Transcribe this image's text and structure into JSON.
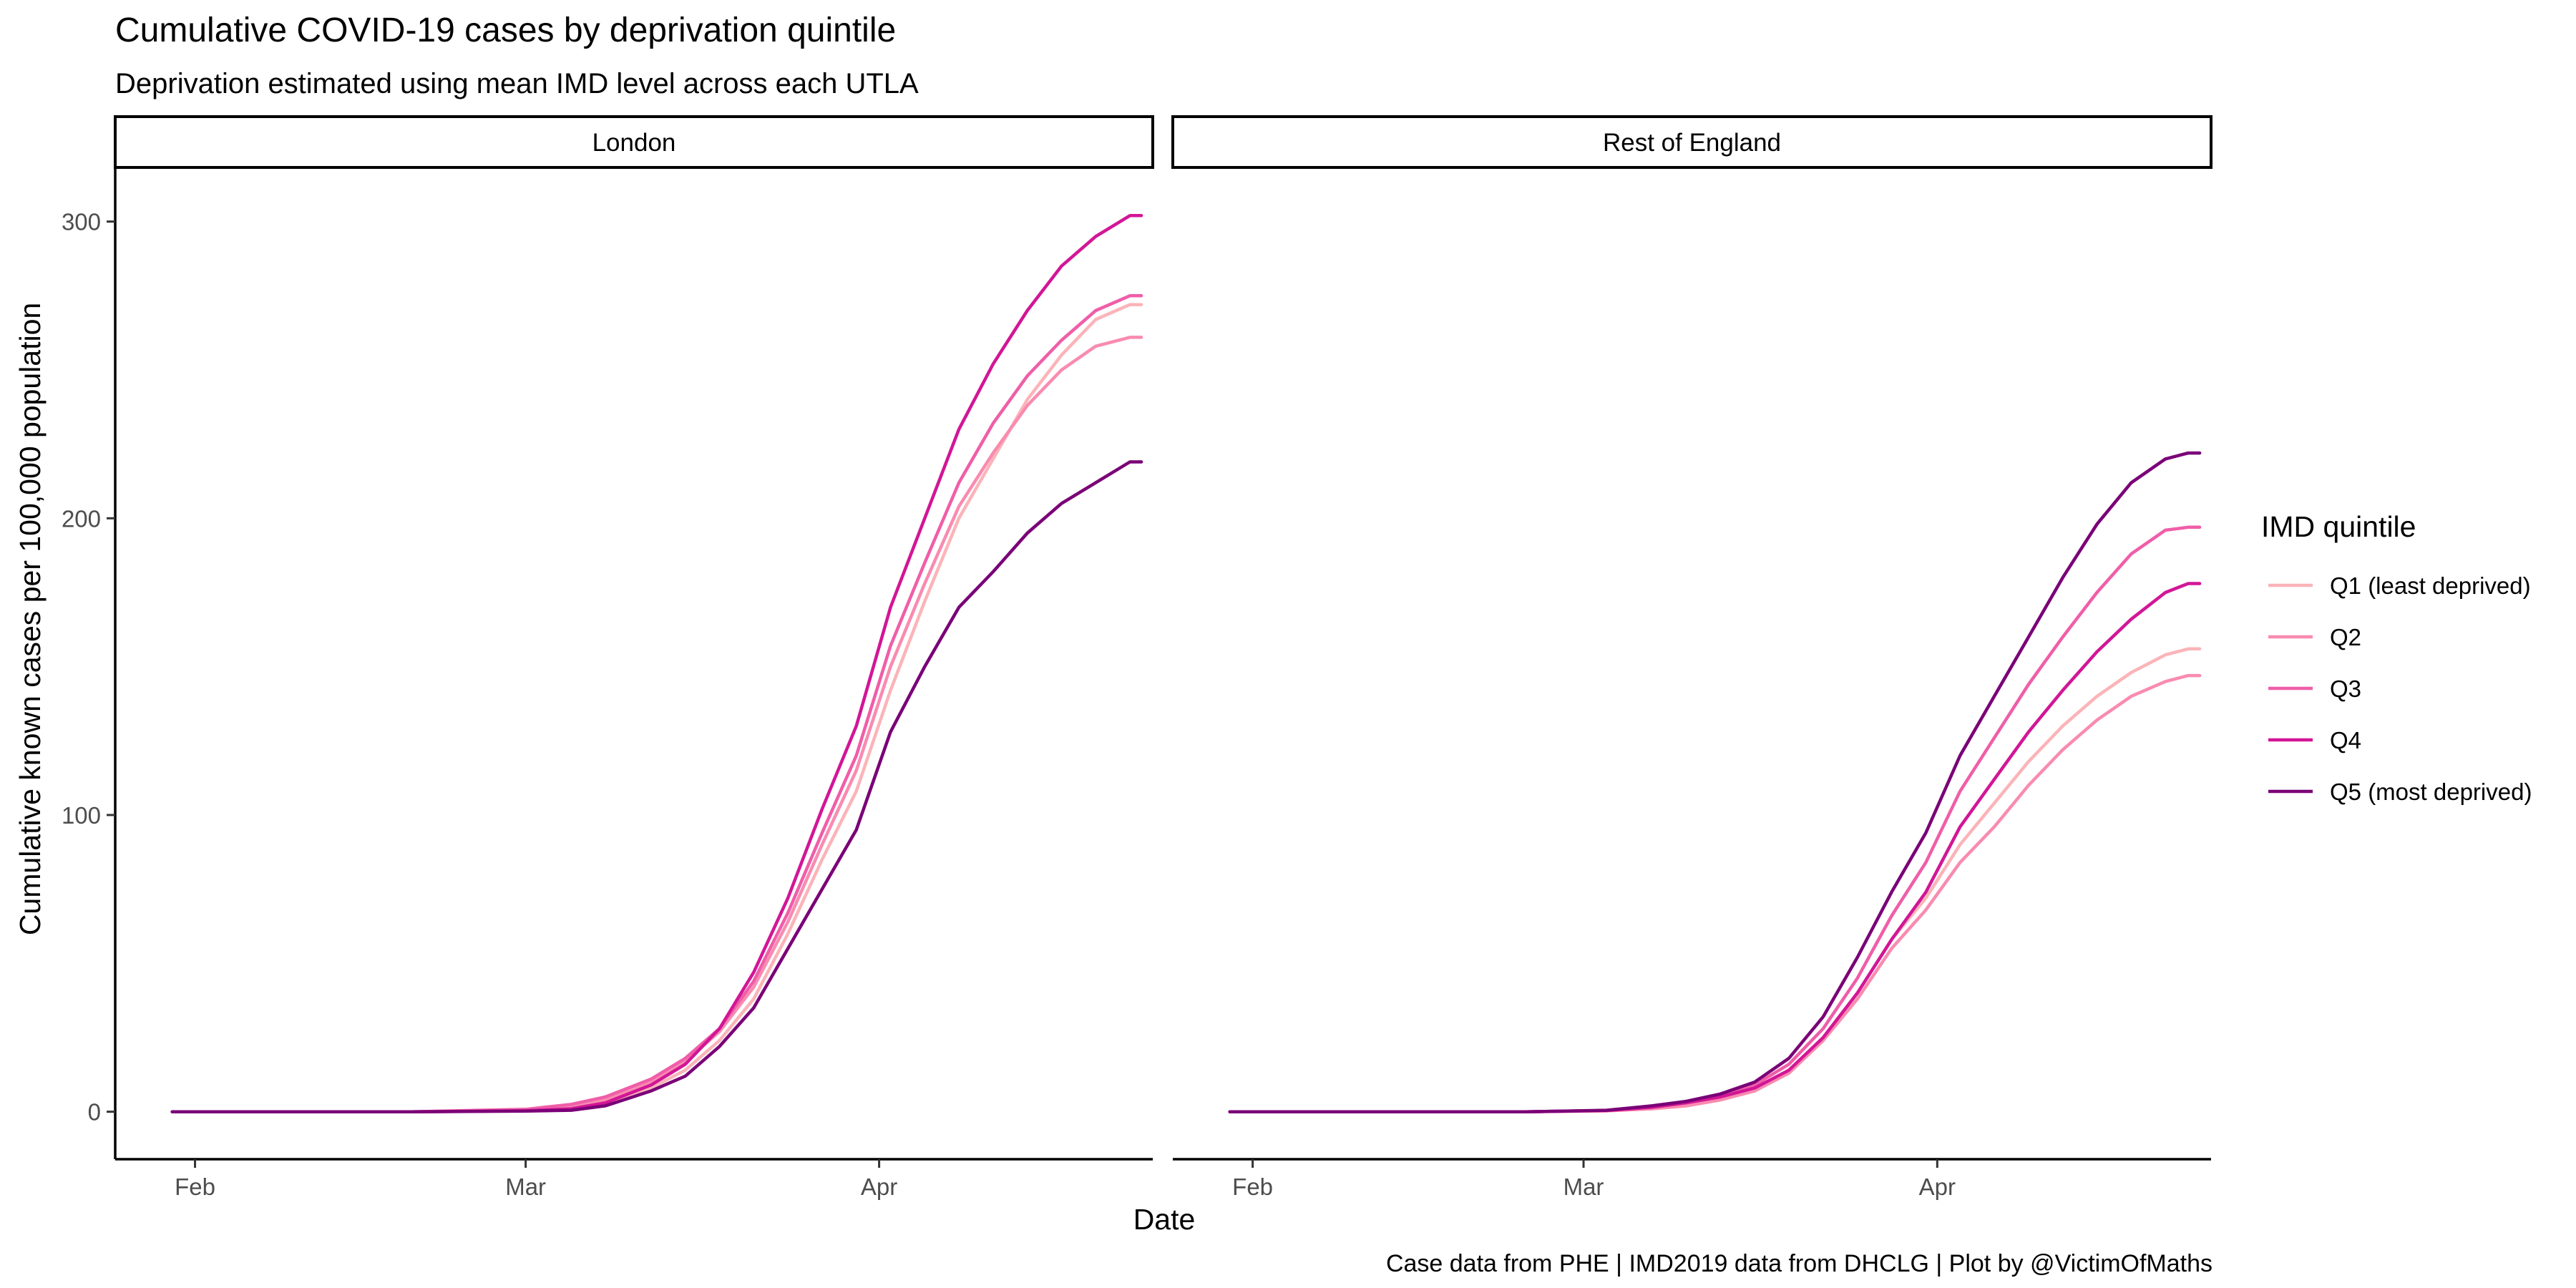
{
  "chart_data": {
    "type": "line",
    "title": "Cumulative COVID-19 cases by deprivation quintile",
    "subtitle": "Deprivation estimated using mean IMD level across each UTLA",
    "xlabel": "Date",
    "ylabel": "Cumulative known cases per 100,000 population",
    "caption": "Case data from PHE | IMD2019 data from DHCLG | Plot by @VictimOfMaths",
    "x_range": [
      "2020-01-25",
      "2020-04-25"
    ],
    "ylim": [
      -16,
      318
    ],
    "x_ticks": [
      {
        "date": "2020-02-01",
        "label": "Feb"
      },
      {
        "date": "2020-03-01",
        "label": "Mar"
      },
      {
        "date": "2020-04-01",
        "label": "Apr"
      }
    ],
    "y_ticks": [
      {
        "value": 0,
        "label": "0"
      },
      {
        "value": 100,
        "label": "100"
      },
      {
        "value": 200,
        "label": "200"
      },
      {
        "value": 300,
        "label": "300"
      }
    ],
    "grid": false,
    "legend": {
      "title": "IMD quintile",
      "position": "right",
      "items": [
        {
          "label": "Q1 (least deprived)",
          "color": "#fbb4b9"
        },
        {
          "label": "Q2",
          "color": "#f98bb0"
        },
        {
          "label": "Q3",
          "color": "#ef5ea8"
        },
        {
          "label": "Q4",
          "color": "#d21696"
        },
        {
          "label": "Q5 (most deprived)",
          "color": "#7a0177"
        }
      ]
    },
    "panels": [
      {
        "title": "London",
        "series": [
          {
            "color": "#fbb4b9",
            "points": [
              [
                "2020-01-30",
                0
              ],
              [
                "2020-02-20",
                0
              ],
              [
                "2020-03-01",
                0.4
              ],
              [
                "2020-03-05",
                1
              ],
              [
                "2020-03-08",
                3
              ],
              [
                "2020-03-12",
                8
              ],
              [
                "2020-03-15",
                14
              ],
              [
                "2020-03-18",
                24
              ],
              [
                "2020-03-21",
                38
              ],
              [
                "2020-03-24",
                60
              ],
              [
                "2020-03-27",
                85
              ],
              [
                "2020-03-30",
                108
              ],
              [
                "2020-04-02",
                142
              ],
              [
                "2020-04-05",
                172
              ],
              [
                "2020-04-08",
                200
              ],
              [
                "2020-04-11",
                220
              ],
              [
                "2020-04-14",
                240
              ],
              [
                "2020-04-17",
                255
              ],
              [
                "2020-04-20",
                267
              ],
              [
                "2020-04-23",
                272
              ],
              [
                "2020-04-24",
                272
              ]
            ]
          },
          {
            "color": "#f98bb0",
            "points": [
              [
                "2020-01-30",
                0
              ],
              [
                "2020-02-20",
                0
              ],
              [
                "2020-03-01",
                0.6
              ],
              [
                "2020-03-05",
                2
              ],
              [
                "2020-03-08",
                4
              ],
              [
                "2020-03-12",
                10
              ],
              [
                "2020-03-15",
                17
              ],
              [
                "2020-03-18",
                27
              ],
              [
                "2020-03-21",
                42
              ],
              [
                "2020-03-24",
                64
              ],
              [
                "2020-03-27",
                90
              ],
              [
                "2020-03-30",
                115
              ],
              [
                "2020-04-02",
                150
              ],
              [
                "2020-04-05",
                178
              ],
              [
                "2020-04-08",
                204
              ],
              [
                "2020-04-11",
                222
              ],
              [
                "2020-04-14",
                238
              ],
              [
                "2020-04-17",
                250
              ],
              [
                "2020-04-20",
                258
              ],
              [
                "2020-04-23",
                261
              ],
              [
                "2020-04-24",
                261
              ]
            ]
          },
          {
            "color": "#ef5ea8",
            "points": [
              [
                "2020-01-30",
                0
              ],
              [
                "2020-02-20",
                0
              ],
              [
                "2020-03-01",
                0.8
              ],
              [
                "2020-03-05",
                2.5
              ],
              [
                "2020-03-08",
                5
              ],
              [
                "2020-03-12",
                11
              ],
              [
                "2020-03-15",
                18
              ],
              [
                "2020-03-18",
                28
              ],
              [
                "2020-03-21",
                44
              ],
              [
                "2020-03-24",
                67
              ],
              [
                "2020-03-27",
                94
              ],
              [
                "2020-03-30",
                120
              ],
              [
                "2020-04-02",
                157
              ],
              [
                "2020-04-05",
                185
              ],
              [
                "2020-04-08",
                212
              ],
              [
                "2020-04-11",
                232
              ],
              [
                "2020-04-14",
                248
              ],
              [
                "2020-04-17",
                260
              ],
              [
                "2020-04-20",
                270
              ],
              [
                "2020-04-23",
                275
              ],
              [
                "2020-04-24",
                275
              ]
            ]
          },
          {
            "color": "#d21696",
            "points": [
              [
                "2020-01-30",
                0
              ],
              [
                "2020-02-20",
                0
              ],
              [
                "2020-03-01",
                0.3
              ],
              [
                "2020-03-05",
                1
              ],
              [
                "2020-03-08",
                3
              ],
              [
                "2020-03-12",
                9
              ],
              [
                "2020-03-15",
                16
              ],
              [
                "2020-03-18",
                28
              ],
              [
                "2020-03-21",
                47
              ],
              [
                "2020-03-24",
                72
              ],
              [
                "2020-03-27",
                102
              ],
              [
                "2020-03-30",
                130
              ],
              [
                "2020-04-02",
                170
              ],
              [
                "2020-04-05",
                200
              ],
              [
                "2020-04-08",
                230
              ],
              [
                "2020-04-11",
                252
              ],
              [
                "2020-04-14",
                270
              ],
              [
                "2020-04-17",
                285
              ],
              [
                "2020-04-20",
                295
              ],
              [
                "2020-04-23",
                302
              ],
              [
                "2020-04-24",
                302
              ]
            ]
          },
          {
            "color": "#7a0177",
            "points": [
              [
                "2020-01-30",
                0
              ],
              [
                "2020-02-20",
                0
              ],
              [
                "2020-03-01",
                0.2
              ],
              [
                "2020-03-05",
                0.5
              ],
              [
                "2020-03-08",
                2
              ],
              [
                "2020-03-12",
                7
              ],
              [
                "2020-03-15",
                12
              ],
              [
                "2020-03-18",
                22
              ],
              [
                "2020-03-21",
                35
              ],
              [
                "2020-03-24",
                55
              ],
              [
                "2020-03-27",
                75
              ],
              [
                "2020-03-30",
                95
              ],
              [
                "2020-04-02",
                128
              ],
              [
                "2020-04-05",
                150
              ],
              [
                "2020-04-08",
                170
              ],
              [
                "2020-04-11",
                182
              ],
              [
                "2020-04-14",
                195
              ],
              [
                "2020-04-17",
                205
              ],
              [
                "2020-04-20",
                212
              ],
              [
                "2020-04-23",
                219
              ],
              [
                "2020-04-24",
                219
              ]
            ]
          }
        ]
      },
      {
        "title": "Rest of England",
        "series": [
          {
            "color": "#fbb4b9",
            "points": [
              [
                "2020-01-30",
                0
              ],
              [
                "2020-02-25",
                0
              ],
              [
                "2020-03-03",
                0.3
              ],
              [
                "2020-03-07",
                1
              ],
              [
                "2020-03-10",
                2
              ],
              [
                "2020-03-13",
                4
              ],
              [
                "2020-03-16",
                7
              ],
              [
                "2020-03-19",
                14
              ],
              [
                "2020-03-22",
                25
              ],
              [
                "2020-03-25",
                40
              ],
              [
                "2020-03-28",
                58
              ],
              [
                "2020-03-31",
                72
              ],
              [
                "2020-04-03",
                90
              ],
              [
                "2020-04-06",
                104
              ],
              [
                "2020-04-09",
                118
              ],
              [
                "2020-04-12",
                130
              ],
              [
                "2020-04-15",
                140
              ],
              [
                "2020-04-18",
                148
              ],
              [
                "2020-04-21",
                154
              ],
              [
                "2020-04-23",
                156
              ],
              [
                "2020-04-24",
                156
              ]
            ]
          },
          {
            "color": "#f98bb0",
            "points": [
              [
                "2020-01-30",
                0
              ],
              [
                "2020-02-25",
                0
              ],
              [
                "2020-03-03",
                0.3
              ],
              [
                "2020-03-07",
                1
              ],
              [
                "2020-03-10",
                2
              ],
              [
                "2020-03-13",
                4
              ],
              [
                "2020-03-16",
                7
              ],
              [
                "2020-03-19",
                13
              ],
              [
                "2020-03-22",
                24
              ],
              [
                "2020-03-25",
                38
              ],
              [
                "2020-03-28",
                55
              ],
              [
                "2020-03-31",
                68
              ],
              [
                "2020-04-03",
                84
              ],
              [
                "2020-04-06",
                96
              ],
              [
                "2020-04-09",
                110
              ],
              [
                "2020-04-12",
                122
              ],
              [
                "2020-04-15",
                132
              ],
              [
                "2020-04-18",
                140
              ],
              [
                "2020-04-21",
                145
              ],
              [
                "2020-04-23",
                147
              ],
              [
                "2020-04-24",
                147
              ]
            ]
          },
          {
            "color": "#ef5ea8",
            "points": [
              [
                "2020-01-30",
                0
              ],
              [
                "2020-02-25",
                0
              ],
              [
                "2020-03-03",
                0.4
              ],
              [
                "2020-03-07",
                1.5
              ],
              [
                "2020-03-10",
                3
              ],
              [
                "2020-03-13",
                5
              ],
              [
                "2020-03-16",
                9
              ],
              [
                "2020-03-19",
                16
              ],
              [
                "2020-03-22",
                28
              ],
              [
                "2020-03-25",
                45
              ],
              [
                "2020-03-28",
                66
              ],
              [
                "2020-03-31",
                84
              ],
              [
                "2020-04-03",
                108
              ],
              [
                "2020-04-06",
                126
              ],
              [
                "2020-04-09",
                144
              ],
              [
                "2020-04-12",
                160
              ],
              [
                "2020-04-15",
                175
              ],
              [
                "2020-04-18",
                188
              ],
              [
                "2020-04-21",
                196
              ],
              [
                "2020-04-23",
                197
              ],
              [
                "2020-04-24",
                197
              ]
            ]
          },
          {
            "color": "#d21696",
            "points": [
              [
                "2020-01-30",
                0
              ],
              [
                "2020-02-25",
                0
              ],
              [
                "2020-03-03",
                0.4
              ],
              [
                "2020-03-07",
                1.5
              ],
              [
                "2020-03-10",
                3
              ],
              [
                "2020-03-13",
                5
              ],
              [
                "2020-03-16",
                8
              ],
              [
                "2020-03-19",
                14
              ],
              [
                "2020-03-22",
                25
              ],
              [
                "2020-03-25",
                40
              ],
              [
                "2020-03-28",
                58
              ],
              [
                "2020-03-31",
                74
              ],
              [
                "2020-04-03",
                96
              ],
              [
                "2020-04-06",
                112
              ],
              [
                "2020-04-09",
                128
              ],
              [
                "2020-04-12",
                142
              ],
              [
                "2020-04-15",
                155
              ],
              [
                "2020-04-18",
                166
              ],
              [
                "2020-04-21",
                175
              ],
              [
                "2020-04-23",
                178
              ],
              [
                "2020-04-24",
                178
              ]
            ]
          },
          {
            "color": "#7a0177",
            "points": [
              [
                "2020-01-30",
                0
              ],
              [
                "2020-02-25",
                0
              ],
              [
                "2020-03-03",
                0.5
              ],
              [
                "2020-03-07",
                2
              ],
              [
                "2020-03-10",
                3.5
              ],
              [
                "2020-03-13",
                6
              ],
              [
                "2020-03-16",
                10
              ],
              [
                "2020-03-19",
                18
              ],
              [
                "2020-03-22",
                32
              ],
              [
                "2020-03-25",
                52
              ],
              [
                "2020-03-28",
                74
              ],
              [
                "2020-03-31",
                94
              ],
              [
                "2020-04-03",
                120
              ],
              [
                "2020-04-06",
                140
              ],
              [
                "2020-04-09",
                160
              ],
              [
                "2020-04-12",
                180
              ],
              [
                "2020-04-15",
                198
              ],
              [
                "2020-04-18",
                212
              ],
              [
                "2020-04-21",
                220
              ],
              [
                "2020-04-23",
                222
              ],
              [
                "2020-04-24",
                222
              ]
            ]
          }
        ]
      }
    ]
  }
}
